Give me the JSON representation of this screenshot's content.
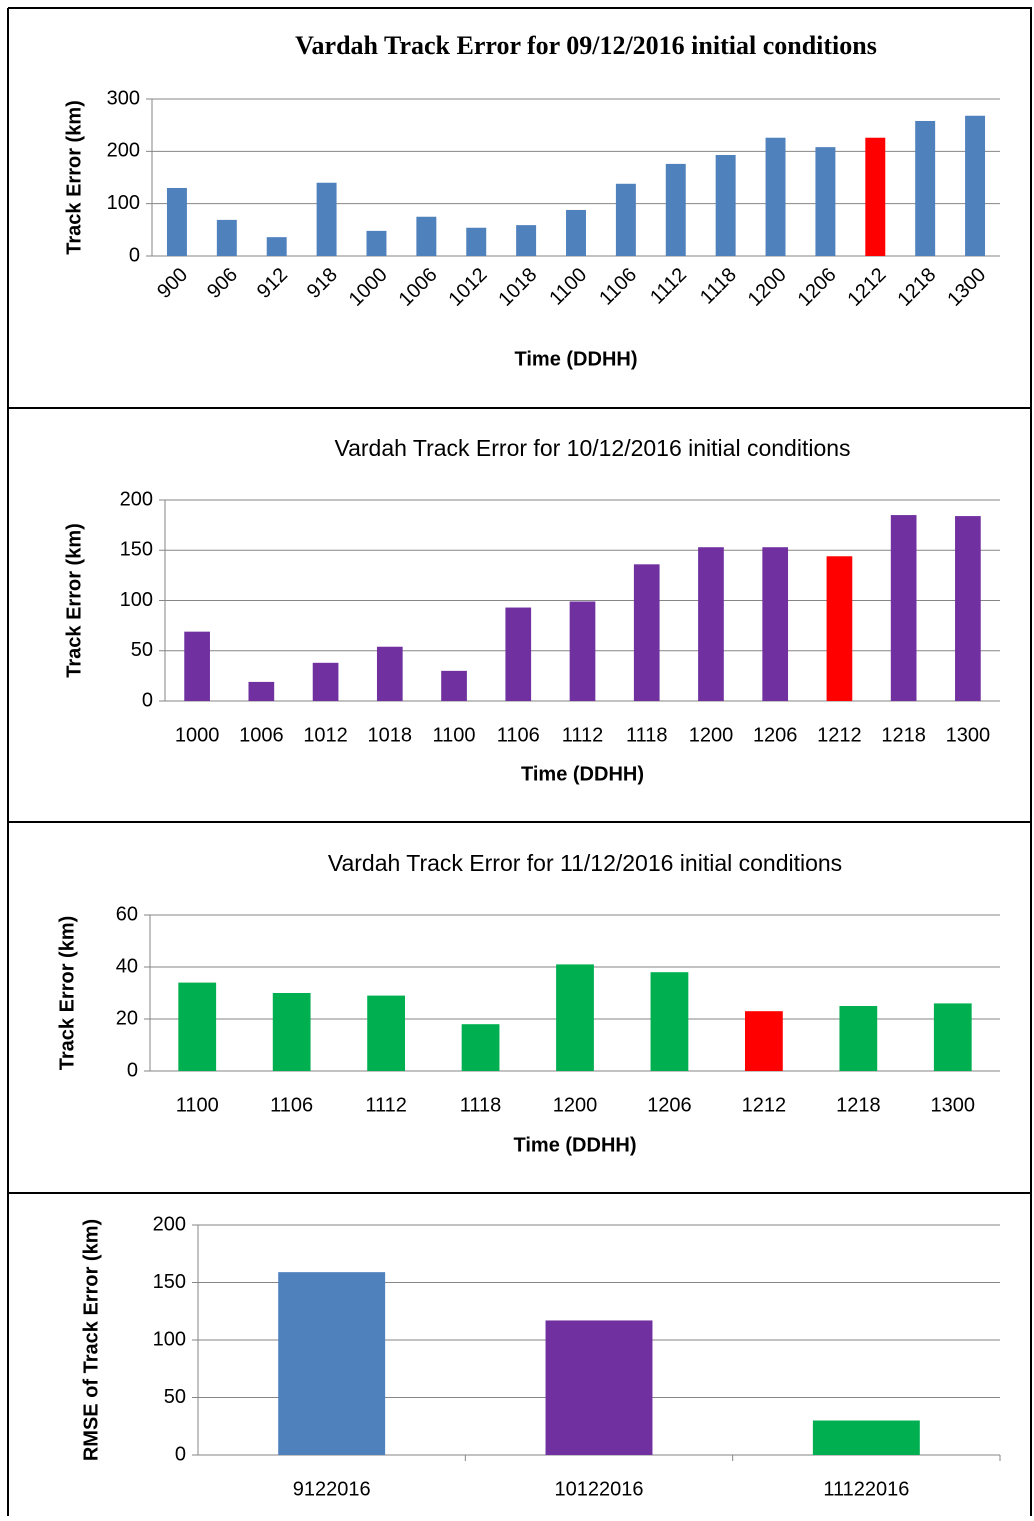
{
  "chart_data": [
    {
      "type": "bar",
      "title": "Vardah Track Error for 09/12/2016 initial conditions",
      "x_label": "Time (DDHH)",
      "y_label": "Track Error (km)",
      "categories": [
        "900",
        "906",
        "912",
        "918",
        "1000",
        "1006",
        "1012",
        "1018",
        "1100",
        "1106",
        "1112",
        "1118",
        "1200",
        "1206",
        "1212",
        "1218",
        "1300"
      ],
      "values": [
        130,
        69,
        36,
        140,
        48,
        75,
        54,
        59,
        88,
        138,
        176,
        193,
        226,
        208,
        226,
        258,
        268
      ],
      "colors": [
        "#4f81bd",
        "#4f81bd",
        "#4f81bd",
        "#4f81bd",
        "#4f81bd",
        "#4f81bd",
        "#4f81bd",
        "#4f81bd",
        "#4f81bd",
        "#4f81bd",
        "#4f81bd",
        "#4f81bd",
        "#4f81bd",
        "#4f81bd",
        "#ff0000",
        "#4f81bd",
        "#4f81bd"
      ],
      "ylim": [
        0,
        300
      ],
      "yticks": [
        0,
        100,
        200,
        300
      ],
      "grid": true
    },
    {
      "type": "bar",
      "title": "Vardah Track Error for 10/12/2016 initial conditions",
      "x_label": "Time (DDHH)",
      "y_label": "Track Error (km)",
      "categories": [
        "1000",
        "1006",
        "1012",
        "1018",
        "1100",
        "1106",
        "1112",
        "1118",
        "1200",
        "1206",
        "1212",
        "1218",
        "1300"
      ],
      "values": [
        69,
        19,
        38,
        54,
        30,
        93,
        99,
        136,
        153,
        153,
        144,
        185,
        184
      ],
      "colors": [
        "#7030a0",
        "#7030a0",
        "#7030a0",
        "#7030a0",
        "#7030a0",
        "#7030a0",
        "#7030a0",
        "#7030a0",
        "#7030a0",
        "#7030a0",
        "#ff0000",
        "#7030a0",
        "#7030a0"
      ],
      "ylim": [
        0,
        200
      ],
      "yticks": [
        0,
        50,
        100,
        150,
        200
      ],
      "grid": true
    },
    {
      "type": "bar",
      "title": "Vardah Track Error for 11/12/2016 initial conditions",
      "x_label": "Time (DDHH)",
      "y_label": "Track Error (km)",
      "categories": [
        "1100",
        "1106",
        "1112",
        "1118",
        "1200",
        "1206",
        "1212",
        "1218",
        "1300"
      ],
      "values": [
        34,
        30,
        29,
        18,
        41,
        38,
        23,
        25,
        26
      ],
      "colors": [
        "#00b050",
        "#00b050",
        "#00b050",
        "#00b050",
        "#00b050",
        "#00b050",
        "#ff0000",
        "#00b050",
        "#00b050"
      ],
      "ylim": [
        0,
        60
      ],
      "yticks": [
        0,
        20,
        40,
        60
      ],
      "grid": true
    },
    {
      "type": "bar",
      "y_label": "RMSE of Track Error (km)",
      "categories": [
        "9122016",
        "10122016",
        "11122016"
      ],
      "values": [
        159,
        117,
        30
      ],
      "colors": [
        "#4f81bd",
        "#7030a0",
        "#00b050"
      ],
      "ylim": [
        0,
        200
      ],
      "yticks": [
        0,
        50,
        100,
        150,
        200
      ],
      "grid": true
    }
  ]
}
